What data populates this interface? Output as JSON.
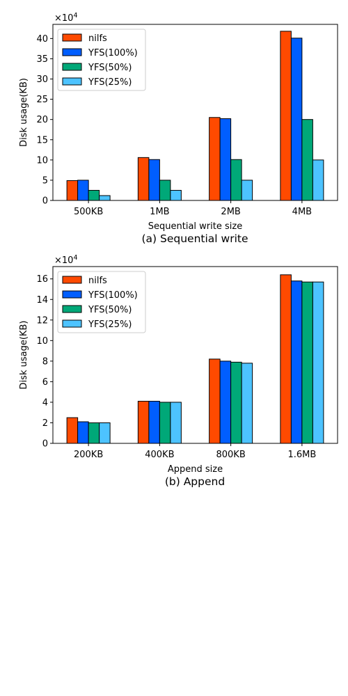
{
  "chart_data": [
    {
      "type": "bar",
      "caption": "(a) Sequential write",
      "xlabel": "Sequential write size",
      "ylabel": "Disk usage(KB)",
      "offset_label": "×10",
      "offset_exp": "4",
      "ylim": [
        0,
        43.5
      ],
      "yticks": [
        0,
        5,
        10,
        15,
        20,
        25,
        30,
        35,
        40
      ],
      "legend_position": "top-left",
      "grid": false,
      "categories": [
        "500KB",
        "1MB",
        "2MB",
        "4MB"
      ],
      "series": [
        {
          "name": "nilfs",
          "color": "#ff4a00",
          "values": [
            4.9,
            10.6,
            20.5,
            41.8
          ]
        },
        {
          "name": "YFS(100%)",
          "color": "#005eff",
          "values": [
            5.0,
            10.1,
            20.2,
            40.1
          ]
        },
        {
          "name": "YFS(50%)",
          "color": "#00a878",
          "values": [
            2.5,
            5.0,
            10.1,
            20.0
          ]
        },
        {
          "name": "YFS(25%)",
          "color": "#4dc3ff",
          "values": [
            1.2,
            2.5,
            5.0,
            10.0
          ]
        }
      ]
    },
    {
      "type": "bar",
      "caption": "(b) Append",
      "xlabel": "Append size",
      "ylabel": "Disk usage(KB)",
      "offset_label": "×10",
      "offset_exp": "4",
      "ylim": [
        0,
        17.2
      ],
      "yticks": [
        0,
        2,
        4,
        6,
        8,
        10,
        12,
        14,
        16
      ],
      "legend_position": "top-left",
      "grid": false,
      "categories": [
        "200KB",
        "400KB",
        "800KB",
        "1.6MB"
      ],
      "series": [
        {
          "name": "nilfs",
          "color": "#ff4a00",
          "values": [
            2.5,
            4.1,
            8.2,
            16.4
          ]
        },
        {
          "name": "YFS(100%)",
          "color": "#005eff",
          "values": [
            2.1,
            4.1,
            8.0,
            15.8
          ]
        },
        {
          "name": "YFS(50%)",
          "color": "#00a878",
          "values": [
            2.0,
            4.0,
            7.9,
            15.7
          ]
        },
        {
          "name": "YFS(25%)",
          "color": "#4dc3ff",
          "values": [
            2.0,
            4.0,
            7.8,
            15.7
          ]
        }
      ]
    }
  ]
}
